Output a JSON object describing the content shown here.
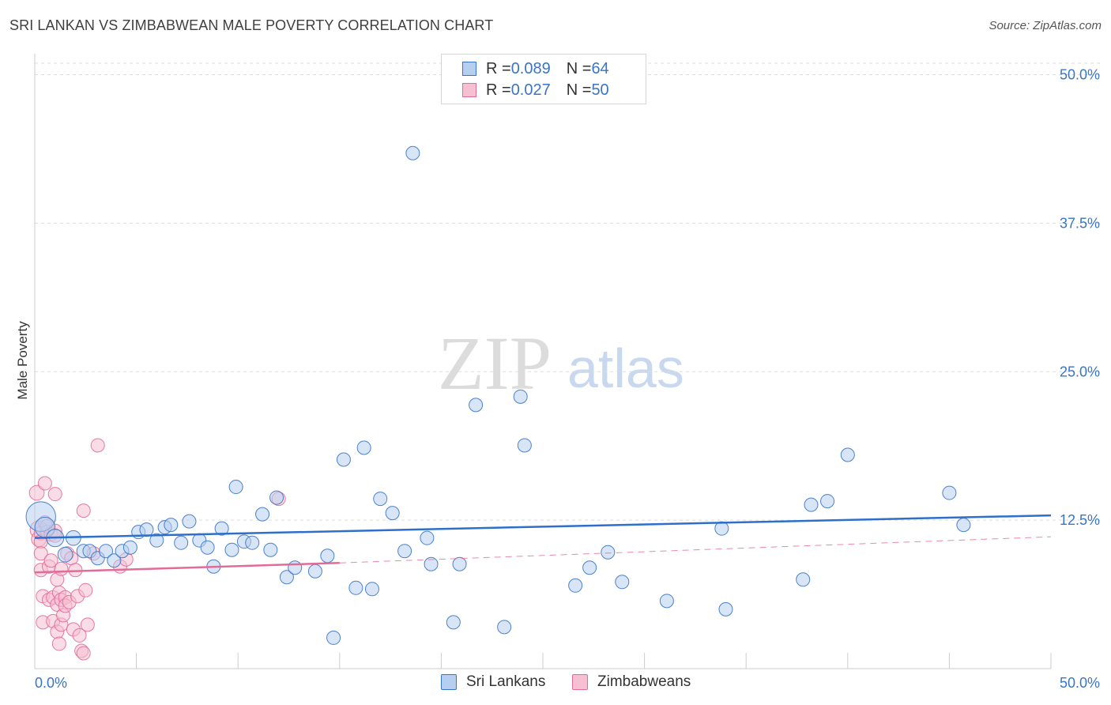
{
  "title": "SRI LANKAN VS ZIMBABWEAN MALE POVERTY CORRELATION CHART",
  "source": "Source: ZipAtlas.com",
  "watermark": {
    "zip": "ZIP",
    "atlas": "atlas"
  },
  "colors": {
    "blue": "#3a75c4",
    "blue_fill": "#b6cff0",
    "blue_line": "#2f6fcc",
    "pink": "#e36b98",
    "pink_fill": "#f6bfd2",
    "axis_text": "#3a75c4",
    "grid": "#dddddd"
  },
  "legend": {
    "rows": [
      {
        "r_label": "R = ",
        "r_value": "0.089",
        "n_label": "N = ",
        "n_value": "64",
        "color": "blue"
      },
      {
        "r_label": "R = ",
        "r_value": "0.027",
        "n_label": "N = ",
        "n_value": "50",
        "color": "pink"
      }
    ]
  },
  "bottom_legend": [
    {
      "label": "Sri Lankans",
      "color": "blue"
    },
    {
      "label": "Zimbabweans",
      "color": "pink"
    }
  ],
  "chart_data": {
    "type": "scatter",
    "title": "SRI LANKAN VS ZIMBABWEAN MALE POVERTY CORRELATION CHART",
    "xlabel": "",
    "ylabel": "Male Poverty",
    "xlim": [
      0,
      50
    ],
    "ylim": [
      0,
      51.5
    ],
    "x_tick_labels": [
      "0.0%",
      "50.0%"
    ],
    "y_ticks": [
      12.5,
      25.0,
      37.5,
      50.0
    ],
    "y_tick_labels": [
      "12.5%",
      "25.0%",
      "37.5%",
      "50.0%"
    ],
    "grid": true,
    "legend_placement": "top-center",
    "series": [
      {
        "name": "Sri Lankans",
        "color": "blue",
        "trend": {
          "x": [
            0,
            50
          ],
          "y": [
            11.0,
            12.9
          ]
        },
        "points": [
          [
            0.3,
            12.8,
            2.2
          ],
          [
            0.5,
            11.9,
            1.5
          ],
          [
            1.0,
            11.0,
            1.3
          ],
          [
            1.5,
            9.6,
            1.1
          ],
          [
            1.9,
            11.0,
            1.1
          ],
          [
            2.4,
            9.9,
            1.0
          ],
          [
            2.7,
            9.9,
            1.0
          ],
          [
            3.1,
            9.3,
            1.0
          ],
          [
            3.5,
            9.9,
            1.0
          ],
          [
            3.9,
            9.1,
            1.0
          ],
          [
            4.3,
            9.9,
            1.0
          ],
          [
            4.7,
            10.2,
            1.0
          ],
          [
            5.1,
            11.5,
            1.0
          ],
          [
            5.5,
            11.7,
            1.0
          ],
          [
            6.0,
            10.8,
            1.0
          ],
          [
            6.4,
            11.9,
            1.0
          ],
          [
            6.7,
            12.1,
            1.0
          ],
          [
            7.2,
            10.6,
            1.0
          ],
          [
            7.6,
            12.4,
            1.0
          ],
          [
            8.1,
            10.8,
            1.0
          ],
          [
            8.5,
            10.2,
            1.0
          ],
          [
            8.8,
            8.6,
            1.0
          ],
          [
            9.2,
            11.8,
            1.0
          ],
          [
            9.7,
            10.0,
            1.0
          ],
          [
            9.9,
            15.3,
            1.0
          ],
          [
            10.3,
            10.7,
            1.0
          ],
          [
            10.7,
            10.6,
            1.0
          ],
          [
            11.2,
            13.0,
            1.0
          ],
          [
            11.6,
            10.0,
            1.0
          ],
          [
            11.9,
            14.4,
            1.0
          ],
          [
            12.4,
            7.7,
            1.0
          ],
          [
            12.8,
            8.5,
            1.0
          ],
          [
            13.8,
            8.2,
            1.0
          ],
          [
            14.4,
            9.5,
            1.0
          ],
          [
            14.7,
            2.6,
            1.0
          ],
          [
            15.2,
            17.6,
            1.0
          ],
          [
            15.8,
            6.8,
            1.0
          ],
          [
            16.2,
            18.6,
            1.0
          ],
          [
            16.6,
            6.7,
            1.0
          ],
          [
            17.0,
            14.3,
            1.0
          ],
          [
            17.6,
            13.1,
            1.0
          ],
          [
            18.2,
            9.9,
            1.0
          ],
          [
            18.6,
            43.4,
            1.0
          ],
          [
            19.3,
            11.0,
            1.0
          ],
          [
            19.5,
            8.8,
            1.0
          ],
          [
            20.6,
            3.9,
            1.0
          ],
          [
            20.9,
            8.8,
            1.0
          ],
          [
            21.7,
            22.2,
            1.0
          ],
          [
            23.1,
            3.5,
            1.0
          ],
          [
            23.9,
            22.9,
            1.0
          ],
          [
            24.1,
            18.8,
            1.0
          ],
          [
            26.6,
            7.0,
            1.0
          ],
          [
            27.3,
            8.5,
            1.0
          ],
          [
            28.2,
            9.8,
            1.0
          ],
          [
            28.9,
            7.3,
            1.0
          ],
          [
            31.1,
            5.7,
            1.0
          ],
          [
            33.8,
            11.8,
            1.0
          ],
          [
            34.0,
            5.0,
            1.0
          ],
          [
            37.8,
            7.5,
            1.0
          ],
          [
            38.2,
            13.8,
            1.0
          ],
          [
            39.0,
            14.1,
            1.0
          ],
          [
            40.0,
            18.0,
            1.0
          ],
          [
            45.0,
            14.8,
            1.0
          ],
          [
            45.7,
            12.1,
            1.0
          ]
        ]
      },
      {
        "name": "Zimbabweans",
        "color": "pink",
        "trend": {
          "x": [
            0,
            15
          ],
          "y": [
            8.1,
            8.9
          ]
        },
        "trend_extension": {
          "x": [
            15,
            50
          ],
          "y": [
            8.9,
            11.1
          ]
        },
        "points": [
          [
            0.1,
            14.8,
            1.1
          ],
          [
            0.2,
            11.7,
            1.3
          ],
          [
            0.2,
            10.9,
            1.1
          ],
          [
            0.3,
            11.4,
            1.0
          ],
          [
            0.3,
            10.7,
            1.0
          ],
          [
            0.3,
            9.7,
            1.0
          ],
          [
            0.3,
            8.3,
            1.0
          ],
          [
            0.4,
            6.1,
            1.0
          ],
          [
            0.4,
            3.9,
            1.0
          ],
          [
            0.5,
            12.3,
            1.0
          ],
          [
            0.5,
            15.6,
            1.0
          ],
          [
            0.6,
            11.5,
            1.0
          ],
          [
            0.6,
            12.0,
            1.0
          ],
          [
            0.7,
            8.6,
            1.0
          ],
          [
            0.7,
            5.8,
            1.0
          ],
          [
            0.8,
            11.3,
            1.0
          ],
          [
            0.8,
            9.1,
            1.0
          ],
          [
            0.9,
            6.0,
            1.0
          ],
          [
            0.9,
            4.0,
            1.0
          ],
          [
            1.0,
            14.7,
            1.0
          ],
          [
            1.0,
            11.6,
            1.0
          ],
          [
            1.1,
            7.5,
            1.0
          ],
          [
            1.1,
            5.4,
            1.0
          ],
          [
            1.1,
            3.1,
            1.0
          ],
          [
            1.2,
            6.4,
            1.0
          ],
          [
            1.2,
            2.1,
            1.0
          ],
          [
            1.3,
            8.4,
            1.0
          ],
          [
            1.3,
            3.7,
            1.0
          ],
          [
            1.3,
            5.8,
            1.0
          ],
          [
            1.4,
            4.5,
            1.0
          ],
          [
            1.5,
            6.0,
            1.0
          ],
          [
            1.5,
            5.3,
            1.0
          ],
          [
            1.6,
            9.7,
            1.0
          ],
          [
            1.7,
            5.6,
            1.0
          ],
          [
            1.8,
            9.3,
            1.0
          ],
          [
            1.9,
            3.3,
            1.0
          ],
          [
            2.0,
            8.3,
            1.0
          ],
          [
            2.1,
            6.1,
            1.0
          ],
          [
            2.2,
            2.8,
            1.0
          ],
          [
            2.3,
            1.5,
            1.0
          ],
          [
            2.4,
            13.3,
            1.0
          ],
          [
            2.4,
            1.3,
            1.0
          ],
          [
            2.5,
            6.6,
            1.0
          ],
          [
            2.6,
            3.7,
            1.0
          ],
          [
            2.9,
            9.7,
            1.0
          ],
          [
            3.1,
            18.8,
            1.0
          ],
          [
            4.2,
            8.6,
            1.0
          ],
          [
            4.5,
            9.2,
            1.0
          ],
          [
            12.0,
            14.3,
            1.0
          ],
          [
            1.0,
            11.2,
            1.0
          ]
        ]
      }
    ]
  }
}
